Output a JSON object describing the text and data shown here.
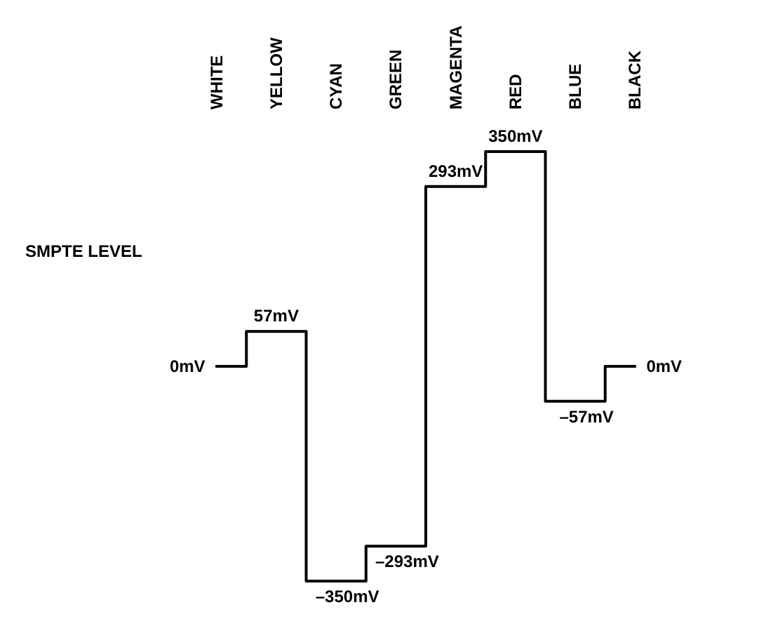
{
  "chart_data": {
    "type": "step",
    "categories": [
      "WHITE",
      "YELLOW",
      "CYAN",
      "GREEN",
      "MAGENTA",
      "RED",
      "BLUE",
      "BLACK"
    ],
    "values": [
      0,
      57,
      -350,
      -293,
      293,
      350,
      -57,
      0
    ],
    "value_labels": [
      "0mV",
      "57mV",
      "–350mV",
      "–293mV",
      "293mV",
      "350mV",
      "–57mV",
      "0mV"
    ],
    "color": "#000000",
    "annotations": [
      "SMPTE LEVEL"
    ],
    "marker": "none",
    "line_style": "solid"
  }
}
